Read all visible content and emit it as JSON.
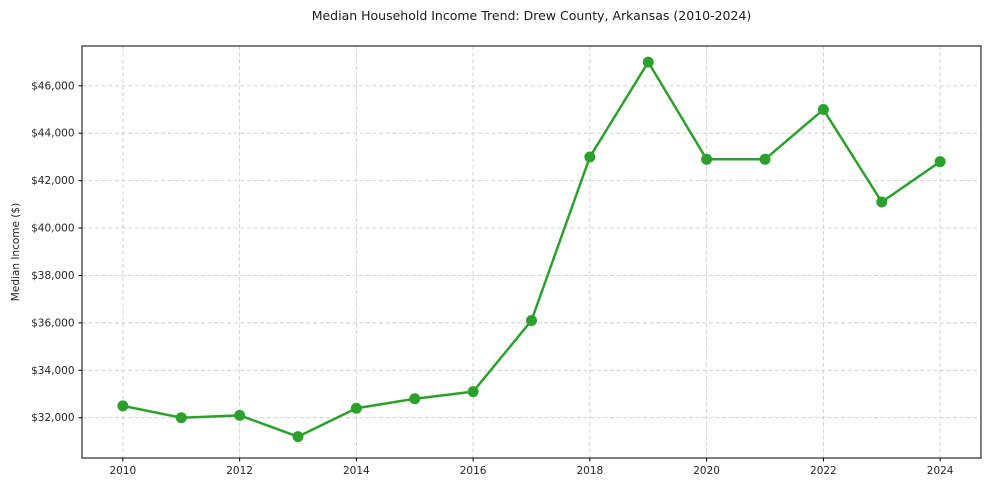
{
  "chart_data": {
    "type": "line",
    "title": "Median Household Income Trend: Drew County, Arkansas (2010-2024)",
    "xlabel": "",
    "ylabel": "Median Income ($)",
    "x": [
      2010,
      2011,
      2012,
      2013,
      2014,
      2015,
      2016,
      2017,
      2018,
      2019,
      2020,
      2021,
      2022,
      2023,
      2024
    ],
    "values": [
      32500,
      32000,
      32100,
      31200,
      32400,
      32800,
      33100,
      36100,
      43000,
      47000,
      42900,
      42900,
      45000,
      41100,
      42800
    ],
    "x_ticks": {
      "values": [
        2010,
        2012,
        2014,
        2016,
        2018,
        2020,
        2022,
        2024
      ],
      "labels": [
        "2010",
        "2012",
        "2014",
        "2016",
        "2018",
        "2020",
        "2022",
        "2024"
      ]
    },
    "y_ticks": {
      "values": [
        32000,
        34000,
        36000,
        38000,
        40000,
        42000,
        44000,
        46000
      ],
      "labels": [
        "$32,000",
        "$34,000",
        "$36,000",
        "$38,000",
        "$40,000",
        "$42,000",
        "$44,000",
        "$46,000"
      ]
    },
    "xlim": [
      2009.3,
      2024.7
    ],
    "ylim": [
      30300,
      47680
    ],
    "grid": true,
    "legend_position": "none",
    "line_color": "#2ca02c",
    "marker": "circle",
    "grid_color": "#cccccc",
    "spine_color": "#000000",
    "tick_label_color": "#262626",
    "background_color": "#ffffff"
  }
}
